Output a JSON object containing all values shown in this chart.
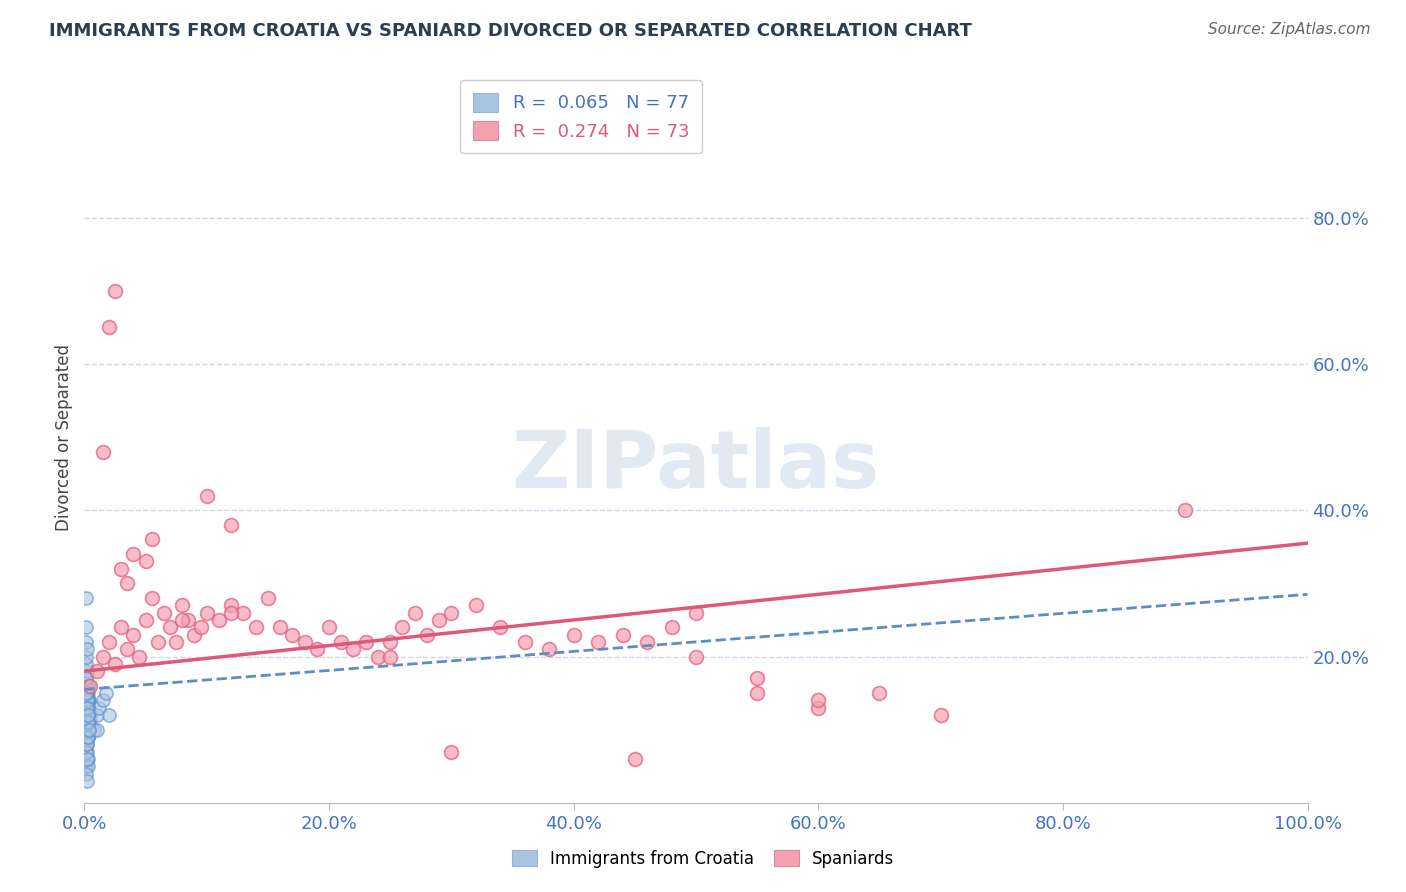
{
  "title": "IMMIGRANTS FROM CROATIA VS SPANIARD DIVORCED OR SEPARATED CORRELATION CHART",
  "source": "Source: ZipAtlas.com",
  "ylabel": "Divorced or Separated",
  "xlabel": "",
  "xlim": [
    0.0,
    1.0
  ],
  "ylim": [
    0.0,
    1.0
  ],
  "xticks": [
    0.0,
    0.2,
    0.4,
    0.6,
    0.8,
    1.0
  ],
  "xtick_labels": [
    "0.0%",
    "20.0%",
    "40.0%",
    "60.0%",
    "80.0%",
    "100.0%"
  ],
  "yticks_right": [
    0.2,
    0.4,
    0.6,
    0.8
  ],
  "ytick_labels_right": [
    "20.0%",
    "40.0%",
    "60.0%",
    "80.0%"
  ],
  "legend1_label": "Immigrants from Croatia",
  "legend2_label": "Spaniards",
  "R_croatia": 0.065,
  "N_croatia": 77,
  "R_spaniard": 0.274,
  "N_spaniard": 73,
  "croatia_color": "#a8c4e0",
  "spaniard_color": "#f4a0b0",
  "croatia_line_color": "#5b8dc8",
  "spaniard_line_color": "#e05878",
  "watermark": "ZIPatlas",
  "background_color": "#ffffff",
  "grid_color": "#c8d4e8",
  "title_color": "#2c3e50",
  "axis_color": "#4472c4",
  "croatia_points": [
    [
      0.002,
      0.12
    ],
    [
      0.003,
      0.14
    ],
    [
      0.004,
      0.13
    ],
    [
      0.002,
      0.15
    ],
    [
      0.003,
      0.16
    ],
    [
      0.001,
      0.1
    ],
    [
      0.002,
      0.11
    ],
    [
      0.003,
      0.09
    ],
    [
      0.002,
      0.12
    ],
    [
      0.003,
      0.1
    ],
    [
      0.001,
      0.08
    ],
    [
      0.002,
      0.13
    ],
    [
      0.003,
      0.15
    ],
    [
      0.002,
      0.11
    ],
    [
      0.003,
      0.14
    ],
    [
      0.001,
      0.17
    ],
    [
      0.002,
      0.09
    ],
    [
      0.001,
      0.08
    ],
    [
      0.002,
      0.1
    ],
    [
      0.003,
      0.12
    ],
    [
      0.003,
      0.13
    ],
    [
      0.004,
      0.14
    ],
    [
      0.003,
      0.11
    ],
    [
      0.004,
      0.16
    ],
    [
      0.005,
      0.12
    ],
    [
      0.001,
      0.22
    ],
    [
      0.002,
      0.13
    ],
    [
      0.003,
      0.14
    ],
    [
      0.002,
      0.12
    ],
    [
      0.003,
      0.13
    ],
    [
      0.003,
      0.09
    ],
    [
      0.004,
      0.1
    ],
    [
      0.003,
      0.13
    ],
    [
      0.004,
      0.1
    ],
    [
      0.005,
      0.11
    ],
    [
      0.008,
      0.1
    ],
    [
      0.01,
      0.12
    ],
    [
      0.012,
      0.13
    ],
    [
      0.015,
      0.14
    ],
    [
      0.018,
      0.15
    ],
    [
      0.001,
      0.05
    ],
    [
      0.002,
      0.07
    ],
    [
      0.003,
      0.06
    ],
    [
      0.002,
      0.08
    ],
    [
      0.003,
      0.05
    ],
    [
      0.001,
      0.16
    ],
    [
      0.002,
      0.18
    ],
    [
      0.003,
      0.11
    ],
    [
      0.002,
      0.09
    ],
    [
      0.003,
      0.13
    ],
    [
      0.001,
      0.07
    ],
    [
      0.002,
      0.08
    ],
    [
      0.003,
      0.1
    ],
    [
      0.002,
      0.12
    ],
    [
      0.003,
      0.14
    ],
    [
      0.001,
      0.19
    ],
    [
      0.002,
      0.15
    ],
    [
      0.003,
      0.12
    ],
    [
      0.002,
      0.11
    ],
    [
      0.003,
      0.09
    ],
    [
      0.001,
      0.2
    ],
    [
      0.01,
      0.1
    ],
    [
      0.02,
      0.12
    ],
    [
      0.001,
      0.04
    ],
    [
      0.002,
      0.03
    ],
    [
      0.001,
      0.24
    ],
    [
      0.002,
      0.21
    ],
    [
      0.001,
      0.17
    ],
    [
      0.001,
      0.28
    ],
    [
      0.002,
      0.06
    ],
    [
      0.001,
      0.13
    ],
    [
      0.002,
      0.14
    ],
    [
      0.001,
      0.15
    ],
    [
      0.002,
      0.13
    ],
    [
      0.003,
      0.11
    ],
    [
      0.003,
      0.12
    ],
    [
      0.004,
      0.1
    ]
  ],
  "spaniard_points": [
    [
      0.005,
      0.16
    ],
    [
      0.01,
      0.18
    ],
    [
      0.015,
      0.2
    ],
    [
      0.02,
      0.22
    ],
    [
      0.025,
      0.19
    ],
    [
      0.03,
      0.24
    ],
    [
      0.035,
      0.21
    ],
    [
      0.04,
      0.23
    ],
    [
      0.045,
      0.2
    ],
    [
      0.05,
      0.25
    ],
    [
      0.055,
      0.28
    ],
    [
      0.06,
      0.22
    ],
    [
      0.065,
      0.26
    ],
    [
      0.07,
      0.24
    ],
    [
      0.075,
      0.22
    ],
    [
      0.08,
      0.27
    ],
    [
      0.085,
      0.25
    ],
    [
      0.09,
      0.23
    ],
    [
      0.095,
      0.24
    ],
    [
      0.1,
      0.26
    ],
    [
      0.11,
      0.25
    ],
    [
      0.12,
      0.27
    ],
    [
      0.13,
      0.26
    ],
    [
      0.14,
      0.24
    ],
    [
      0.15,
      0.28
    ],
    [
      0.16,
      0.24
    ],
    [
      0.17,
      0.23
    ],
    [
      0.18,
      0.22
    ],
    [
      0.19,
      0.21
    ],
    [
      0.2,
      0.24
    ],
    [
      0.21,
      0.22
    ],
    [
      0.22,
      0.21
    ],
    [
      0.23,
      0.22
    ],
    [
      0.24,
      0.2
    ],
    [
      0.25,
      0.22
    ],
    [
      0.26,
      0.24
    ],
    [
      0.27,
      0.26
    ],
    [
      0.28,
      0.23
    ],
    [
      0.29,
      0.25
    ],
    [
      0.3,
      0.26
    ],
    [
      0.015,
      0.48
    ],
    [
      0.02,
      0.65
    ],
    [
      0.025,
      0.7
    ],
    [
      0.1,
      0.42
    ],
    [
      0.12,
      0.38
    ],
    [
      0.035,
      0.3
    ],
    [
      0.055,
      0.36
    ],
    [
      0.03,
      0.32
    ],
    [
      0.04,
      0.34
    ],
    [
      0.05,
      0.33
    ],
    [
      0.32,
      0.27
    ],
    [
      0.34,
      0.24
    ],
    [
      0.36,
      0.22
    ],
    [
      0.38,
      0.21
    ],
    [
      0.4,
      0.23
    ],
    [
      0.42,
      0.22
    ],
    [
      0.44,
      0.23
    ],
    [
      0.46,
      0.22
    ],
    [
      0.48,
      0.24
    ],
    [
      0.5,
      0.26
    ],
    [
      0.55,
      0.15
    ],
    [
      0.6,
      0.13
    ],
    [
      0.65,
      0.15
    ],
    [
      0.7,
      0.12
    ],
    [
      0.55,
      0.17
    ],
    [
      0.6,
      0.14
    ],
    [
      0.5,
      0.2
    ],
    [
      0.9,
      0.4
    ],
    [
      0.08,
      0.25
    ],
    [
      0.12,
      0.26
    ],
    [
      0.25,
      0.2
    ],
    [
      0.3,
      0.07
    ],
    [
      0.45,
      0.06
    ]
  ]
}
